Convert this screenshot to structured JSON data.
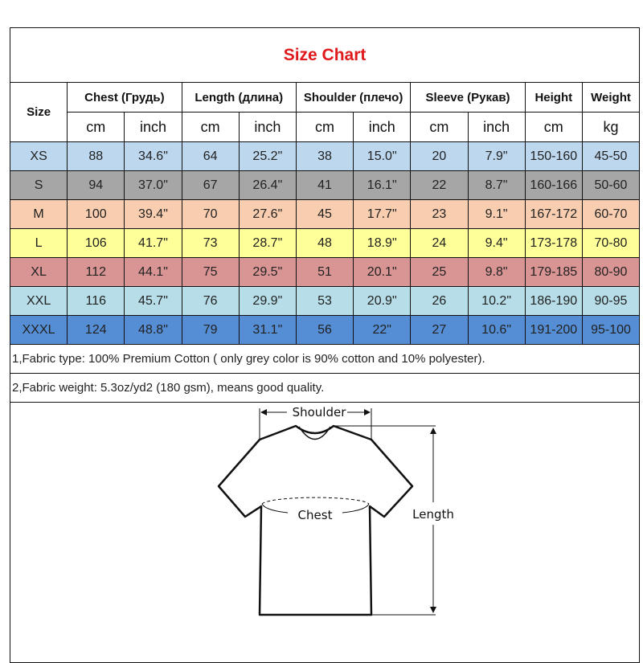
{
  "title": "Size Chart",
  "headers": {
    "size": "Size",
    "groups": [
      "Chest  (Грудь)",
      "Length (длина)",
      "Shoulder (плечо)",
      "Sleeve (Рукав)",
      "Height",
      "Weight"
    ],
    "units": [
      "cm",
      "inch",
      "cm",
      "inch",
      "cm",
      "inch",
      "cm",
      "inch",
      "cm",
      "kg"
    ]
  },
  "rows": [
    {
      "size": "XS",
      "color": "#bdd7ee",
      "cells": [
        "88",
        "34.6\"",
        "64",
        "25.2\"",
        "38",
        "15.0\"",
        "20",
        "7.9\"",
        "150-160",
        "45-50"
      ]
    },
    {
      "size": "S",
      "color": "#a6a6a6",
      "cells": [
        "94",
        "37.0\"",
        "67",
        "26.4\"",
        "41",
        "16.1\"",
        "22",
        "8.7\"",
        "160-166",
        "50-60"
      ]
    },
    {
      "size": "M",
      "color": "#f9cdb0",
      "cells": [
        "100",
        "39.4\"",
        "70",
        "27.6\"",
        "45",
        "17.7\"",
        "23",
        "9.1\"",
        "167-172",
        "60-70"
      ]
    },
    {
      "size": "L",
      "color": "#ffff99",
      "cells": [
        "106",
        "41.7\"",
        "73",
        "28.7\"",
        "48",
        "18.9\"",
        "24",
        "9.4\"",
        "173-178",
        "70-80"
      ]
    },
    {
      "size": "XL",
      "color": "#d99594",
      "cells": [
        "112",
        "44.1\"",
        "75",
        "29.5\"",
        "51",
        "20.1\"",
        "25",
        "9.8\"",
        "179-185",
        "80-90"
      ]
    },
    {
      "size": "XXL",
      "color": "#b7dee8",
      "cells": [
        "116",
        "45.7\"",
        "76",
        "29.9\"",
        "53",
        "20.9\"",
        "26",
        "10.2\"",
        "186-190",
        "90-95"
      ]
    },
    {
      "size": "XXXL",
      "color": "#558ed5",
      "cells": [
        "124",
        "48.8\"",
        "79",
        "31.1\"",
        "56",
        "22\"",
        "27",
        "10.6\"",
        "191-200",
        "95-100"
      ]
    }
  ],
  "notes": [
    "1,Fabric type: 100% Premium Cotton ( only grey color is 90% cotton and 10% polyester).",
    "2,Fabric weight: 5.3oz/yd2 (180 gsm), means good quality."
  ],
  "diagram": {
    "shoulder": "Shoulder",
    "chest": "Chest",
    "length": "Length"
  }
}
